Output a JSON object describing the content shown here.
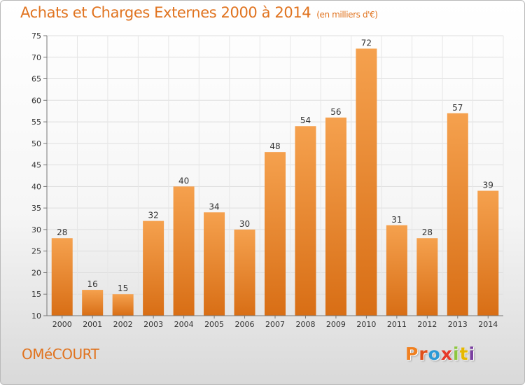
{
  "header": {
    "title": "Achats et Charges Externes 2000 à 2014",
    "unit": "(en milliers d'€)"
  },
  "footer": {
    "commune": "OMéCOURT",
    "brand": "Proxiti",
    "brand_colors": [
      "#f08020",
      "#e0501a",
      "#2c9ad6",
      "#e63a2a",
      "#8dc63f",
      "#e6b800",
      "#7a3fa0"
    ]
  },
  "chart_data": {
    "type": "bar",
    "title": "Achats et Charges Externes 2000 à 2014",
    "subtitle": "(en milliers d'€)",
    "xlabel": "",
    "ylabel": "",
    "categories": [
      "2000",
      "2001",
      "2002",
      "2003",
      "2004",
      "2005",
      "2006",
      "2007",
      "2008",
      "2009",
      "2010",
      "2011",
      "2012",
      "2013",
      "2014"
    ],
    "values": [
      28,
      16,
      15,
      32,
      40,
      34,
      30,
      48,
      54,
      56,
      72,
      31,
      28,
      57,
      39
    ],
    "ylim": [
      10,
      75
    ],
    "yticks": [
      10,
      15,
      20,
      25,
      30,
      35,
      40,
      45,
      50,
      55,
      60,
      65,
      70,
      75
    ],
    "grid": true,
    "data_labels": true,
    "bar_color_top": "#f5a14e",
    "bar_color_bottom": "#d86e15"
  }
}
